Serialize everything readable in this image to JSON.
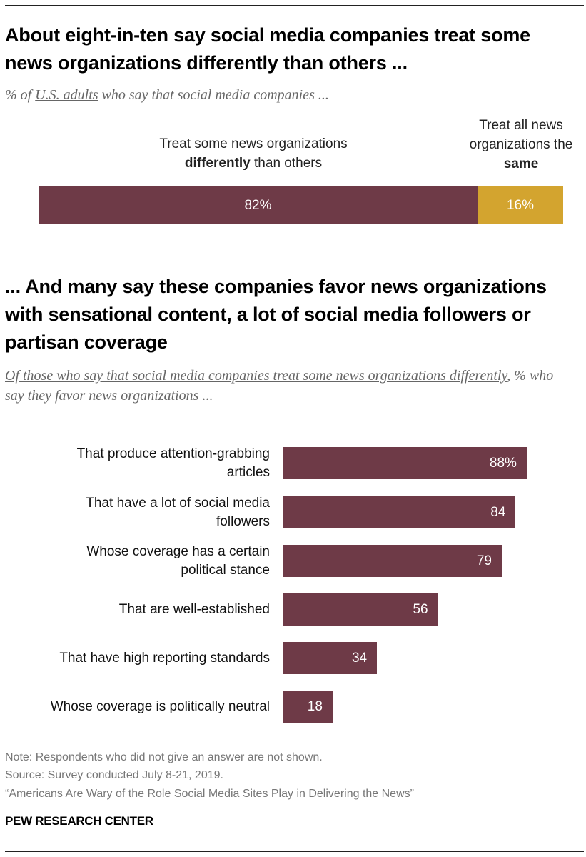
{
  "colors": {
    "maroon": "#6e3a47",
    "gold": "#d3a42f"
  },
  "chart_data": [
    {
      "type": "bar",
      "orientation": "horizontal-stacked",
      "title": "About eight-in-ten say social media companies treat some news organizations differently than others ...",
      "subtitle": {
        "prefix": "% of ",
        "underlined": "U.S. adults",
        "suffix": " who say that social media companies ..."
      },
      "series": [
        {
          "name_parts": [
            "Treat some news organizations",
            "differently",
            " than others"
          ],
          "value": 82,
          "label": "82%",
          "color": "#6e3a47"
        },
        {
          "name_parts": [
            "Treat all news",
            "organizations the",
            "same"
          ],
          "value": 16,
          "label": "16%",
          "color": "#d3a42f"
        }
      ]
    },
    {
      "type": "bar",
      "orientation": "horizontal",
      "title": "... And many say these companies favor news organizations with sensational content, a lot of social media followers or partisan coverage",
      "subtitle": {
        "underlined": "Of those who say that social media companies treat some news organizations differently",
        "suffix": ", % who say they favor news organizations ..."
      },
      "categories": [
        [
          "That produce attention-grabbing",
          "articles"
        ],
        [
          "That have a lot of social media",
          "followers"
        ],
        [
          "Whose coverage has a certain",
          "political stance"
        ],
        [
          "That are well-established"
        ],
        [
          "That have high reporting standards"
        ],
        [
          "Whose coverage is politically neutral"
        ]
      ],
      "values": [
        88,
        84,
        79,
        56,
        34,
        18
      ],
      "labels": [
        "88%",
        "84",
        "79",
        "56",
        "34",
        "18"
      ],
      "color": "#6e3a47"
    }
  ],
  "footer": {
    "note": "Note: Respondents who did not give an answer are not shown.",
    "source": "Source: Survey conducted July 8-21, 2019.",
    "report": "“Americans Are Wary of the Role Social Media Sites Play in Delivering the News”",
    "brand": "PEW RESEARCH CENTER"
  }
}
